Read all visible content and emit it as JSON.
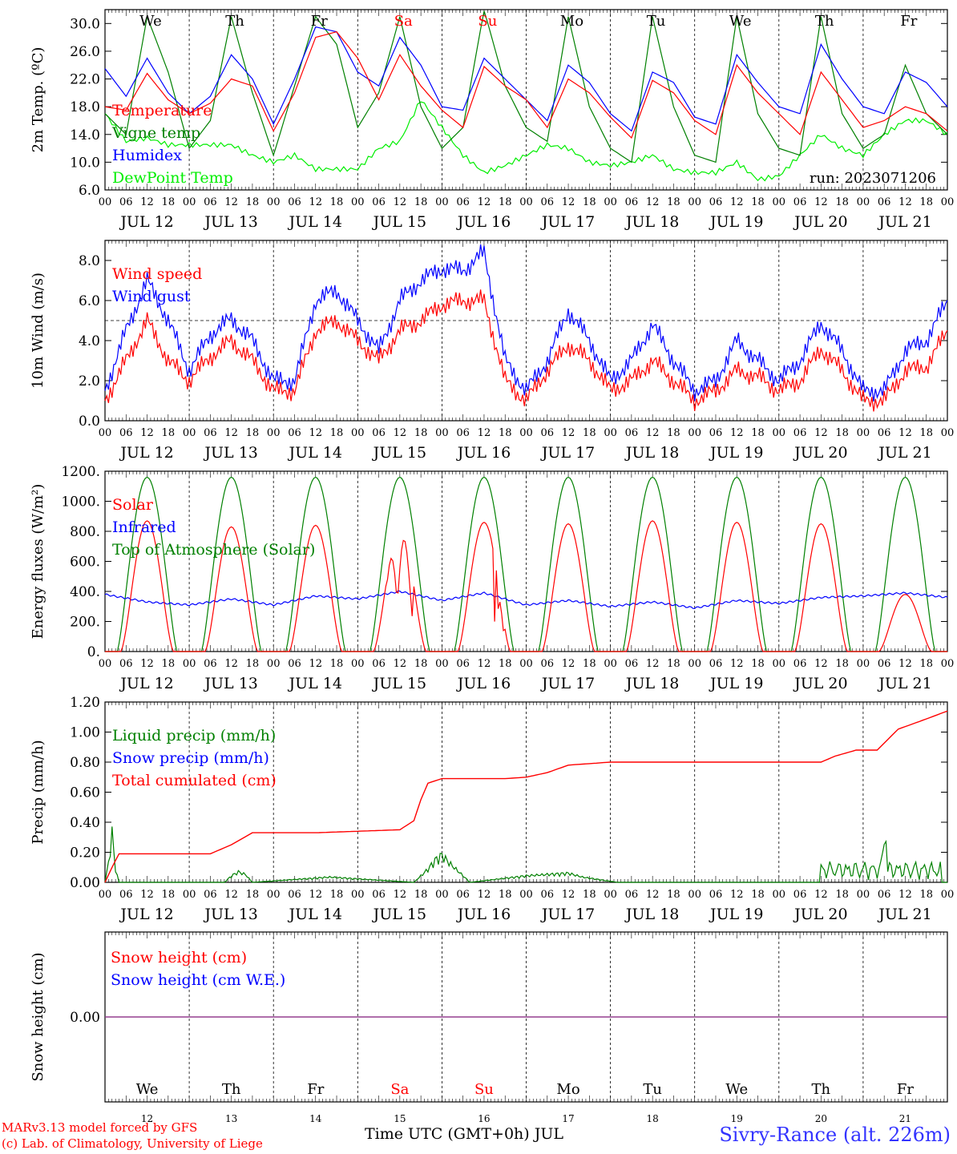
{
  "run_label": "run: 2023071206",
  "station": "Sivry-Rance (alt. 226m)",
  "credits": [
    "MARv3.13 model forced by GFS",
    "(c) Lab. of Climatology, University of Liege"
  ],
  "x_title": "Time UTC (GMT+0h) JUL",
  "days": {
    "weekday_labels": [
      "We",
      "Th",
      "Fr",
      "Sa",
      "Su",
      "Mo",
      "Tu",
      "We",
      "Th",
      "Fr"
    ],
    "weekday_colors": [
      "#000000",
      "#000000",
      "#000000",
      "#ff0000",
      "#ff0000",
      "#000000",
      "#000000",
      "#000000",
      "#000000",
      "#000000"
    ],
    "date_labels": [
      "JUL 12",
      "JUL 13",
      "JUL 14",
      "JUL 15",
      "JUL 16",
      "JUL 17",
      "JUL 18",
      "JUL 19",
      "JUL 20",
      "JUL 21"
    ],
    "day_numbers": [
      "12",
      "13",
      "14",
      "15",
      "16",
      "17",
      "18",
      "19",
      "20",
      "21"
    ],
    "hour_ticks": [
      "00",
      "06",
      "12",
      "18"
    ],
    "final_tick": "00"
  },
  "chart_data": [
    {
      "type": "line",
      "id": "temp",
      "ylabel": "2m Temp. (ºC)",
      "ylim": [
        6,
        32
      ],
      "yticks": [
        "6.0",
        "10.0",
        "14.0",
        "18.0",
        "22.0",
        "26.0",
        "30.0"
      ],
      "ytick_values": [
        6,
        10,
        14,
        18,
        22,
        26,
        30
      ],
      "x_unit": "hours since JUL 12 00 UTC",
      "series": [
        {
          "name": "Temperature",
          "color": "#ff0000",
          "x": [
            0,
            6,
            12,
            18,
            24,
            30,
            36,
            42,
            48,
            54,
            60,
            66,
            72,
            78,
            84,
            90,
            96,
            102,
            108,
            114,
            120,
            126,
            132,
            138,
            144,
            150,
            156,
            162,
            168,
            174,
            180,
            186,
            192,
            198,
            204,
            210,
            216,
            222,
            228,
            234,
            240
          ],
          "values": [
            18,
            17.5,
            22.8,
            19,
            17,
            18.5,
            22,
            21,
            14.5,
            20,
            28,
            28.8,
            25,
            19,
            25.5,
            21,
            17.5,
            15,
            23.8,
            21,
            19,
            15,
            22,
            20,
            16.5,
            13.5,
            21.8,
            20,
            16,
            14,
            24,
            20,
            17,
            14,
            23,
            19,
            15,
            16,
            18,
            17,
            14.5
          ]
        },
        {
          "name": "Vigne temp",
          "color": "#008000",
          "x": [
            0,
            6,
            12,
            18,
            24,
            30,
            36,
            42,
            48,
            54,
            60,
            66,
            72,
            78,
            84,
            90,
            96,
            102,
            108,
            114,
            120,
            126,
            132,
            138,
            144,
            150,
            156,
            162,
            168,
            174,
            180,
            186,
            192,
            198,
            204,
            210,
            216,
            222,
            228,
            234,
            240
          ],
          "values": [
            17,
            14,
            31,
            23,
            12,
            16,
            31,
            20,
            11,
            21,
            31,
            27,
            15,
            20,
            31,
            18,
            12,
            15,
            32,
            21,
            15,
            13,
            31,
            18,
            12,
            10,
            31,
            18,
            11,
            10,
            31,
            17,
            12,
            11,
            31,
            17,
            12,
            14,
            24,
            17,
            14
          ]
        },
        {
          "name": "Humidex",
          "color": "#0000ff",
          "x": [
            0,
            6,
            12,
            18,
            24,
            30,
            36,
            42,
            48,
            54,
            60,
            66,
            72,
            78,
            84,
            90,
            96,
            102,
            108,
            114,
            120,
            126,
            132,
            138,
            144,
            150,
            156,
            162,
            168,
            174,
            180,
            186,
            192,
            198,
            204,
            210,
            216,
            222,
            228,
            234,
            240
          ],
          "values": [
            23.5,
            19.5,
            25,
            20,
            17,
            19.5,
            25.5,
            22,
            15.5,
            22,
            29.5,
            28.8,
            23,
            21,
            28,
            24,
            18,
            17.5,
            25,
            22,
            19,
            16,
            24,
            21.5,
            17,
            14.5,
            23,
            21.5,
            16.5,
            15.5,
            25.5,
            21.5,
            18,
            17,
            27,
            22,
            18,
            17,
            23,
            21.5,
            18
          ]
        },
        {
          "name": "DewPoint Temp",
          "color": "#00ee00",
          "x": [
            0,
            6,
            12,
            18,
            24,
            30,
            36,
            42,
            48,
            54,
            60,
            66,
            72,
            78,
            84,
            90,
            96,
            102,
            108,
            114,
            120,
            126,
            132,
            138,
            144,
            150,
            156,
            162,
            168,
            174,
            180,
            186,
            192,
            198,
            204,
            210,
            216,
            222,
            228,
            234,
            240
          ],
          "values": [
            17,
            13,
            13.5,
            12.5,
            12.5,
            12.5,
            12.5,
            11,
            10,
            11,
            9,
            9,
            9,
            12,
            13,
            19,
            15,
            11,
            8.5,
            9.5,
            11,
            12.5,
            12,
            10,
            9.5,
            10,
            11,
            9,
            8.5,
            8.5,
            10,
            7.5,
            8,
            11,
            14,
            12,
            11,
            14,
            16,
            16,
            14
          ]
        }
      ],
      "series_label_positions": [
        "top-left"
      ],
      "grid": false
    },
    {
      "type": "line",
      "id": "wind",
      "ylabel": "10m Wind (m/s)",
      "ylim": [
        0,
        9
      ],
      "yticks": [
        "0.0",
        "2.0",
        "4.0",
        "6.0",
        "8.0"
      ],
      "ytick_values": [
        0,
        2,
        4,
        6,
        8
      ],
      "reference_line": 5,
      "series": [
        {
          "name": "Wind speed",
          "color": "#ff0000",
          "x": [
            0,
            6,
            12,
            18,
            24,
            30,
            36,
            42,
            48,
            54,
            60,
            66,
            72,
            78,
            84,
            90,
            96,
            102,
            108,
            114,
            120,
            126,
            132,
            138,
            144,
            150,
            156,
            162,
            168,
            174,
            180,
            186,
            192,
            198,
            204,
            210,
            216,
            222,
            228,
            234,
            240
          ],
          "values": [
            1,
            3,
            5,
            3,
            2,
            3.2,
            4,
            3,
            1.5,
            1.5,
            4.5,
            5,
            4,
            3,
            4.5,
            5,
            5.8,
            6,
            6,
            2,
            1,
            2.5,
            3.8,
            3,
            1.5,
            2,
            3,
            2,
            1,
            1.5,
            2.5,
            2.2,
            1.5,
            2,
            3.6,
            2.5,
            1,
            1,
            2.5,
            2.7,
            4.5
          ]
        },
        {
          "name": "Wind gust",
          "color": "#0000ff",
          "x": [
            0,
            6,
            12,
            18,
            24,
            30,
            36,
            42,
            48,
            54,
            60,
            66,
            72,
            78,
            84,
            90,
            96,
            102,
            108,
            114,
            120,
            126,
            132,
            138,
            144,
            150,
            156,
            162,
            168,
            174,
            180,
            186,
            192,
            198,
            204,
            210,
            216,
            222,
            228,
            234,
            240
          ],
          "values": [
            1.5,
            4.5,
            7,
            5,
            2.5,
            4.3,
            5.1,
            4,
            2,
            2,
            6,
            6.5,
            5,
            3.5,
            6,
            7,
            7.6,
            7.5,
            8.4,
            3,
            1.5,
            3,
            5.5,
            4,
            2,
            3,
            4.8,
            3,
            1.5,
            2,
            4,
            3,
            2,
            3,
            4.9,
            3.5,
            1.5,
            1.5,
            3.5,
            4,
            6
          ]
        }
      ],
      "grid": false
    },
    {
      "type": "line",
      "id": "energy",
      "ylabel": "Energy fluxes (W/m²)",
      "ylim": [
        0,
        1200
      ],
      "yticks": [
        "0.",
        "200.",
        "400.",
        "600.",
        "800.",
        "1000.",
        "1200."
      ],
      "ytick_values": [
        0,
        200,
        400,
        600,
        800,
        1000,
        1200
      ],
      "daily_solar_peak": [
        870,
        830,
        840,
        790,
        860,
        850,
        870,
        860,
        850,
        380
      ],
      "toa_peak": 1160,
      "series": [
        {
          "name": "Solar",
          "color": "#ff0000"
        },
        {
          "name": "Infrared",
          "color": "#0000ff",
          "x": [
            0,
            12,
            24,
            36,
            48,
            60,
            72,
            84,
            96,
            108,
            120,
            132,
            144,
            156,
            168,
            180,
            192,
            204,
            216,
            228,
            240
          ],
          "values": [
            380,
            330,
            310,
            350,
            310,
            370,
            350,
            400,
            340,
            390,
            310,
            340,
            300,
            330,
            290,
            340,
            320,
            360,
            370,
            390,
            360
          ]
        },
        {
          "name": "Top of Atmosphere (Solar)",
          "color": "#008000"
        }
      ],
      "grid": false
    },
    {
      "type": "line",
      "id": "precip",
      "ylabel": "Precip (mm/h)",
      "ylim": [
        0,
        1.2
      ],
      "yticks": [
        "0.00",
        "0.20",
        "0.40",
        "0.60",
        "0.80",
        "1.00",
        "1.20"
      ],
      "ytick_values": [
        0,
        0.2,
        0.4,
        0.6,
        0.8,
        1.0,
        1.2
      ],
      "series": [
        {
          "name": "Liquid precip (mm/h)",
          "color": "#008000",
          "x": [
            0,
            1,
            2,
            3,
            4,
            6,
            34,
            36,
            38,
            40,
            42,
            64,
            88,
            90,
            92,
            94,
            96,
            98,
            100,
            102,
            104,
            120,
            132,
            136,
            146,
            148,
            150,
            152,
            154,
            156,
            158,
            160,
            162,
            164
          ],
          "values": [
            0,
            0.15,
            0.38,
            0.1,
            0,
            0,
            0,
            0.05,
            0.08,
            0.06,
            0,
            0.04,
            0,
            0.05,
            0.1,
            0.17,
            0.21,
            0.15,
            0.1,
            0.05,
            0,
            0.05,
            0.07,
            0.04,
            0,
            0,
            0,
            0,
            0,
            0,
            0,
            0,
            0,
            0
          ]
        },
        {
          "name": "Snow precip (mm/h)",
          "color": "#0000ff"
        },
        {
          "name": "Total cumulated (cm)",
          "color": "#ff0000",
          "x": [
            0,
            2,
            4,
            6,
            30,
            36,
            42,
            60,
            72,
            84,
            86,
            88,
            90,
            92,
            96,
            108,
            114,
            120,
            126,
            132,
            144,
            168,
            192,
            204,
            208,
            214,
            216,
            220,
            226,
            232,
            240
          ],
          "values": [
            0,
            0.1,
            0.19,
            0.19,
            0.19,
            0.25,
            0.33,
            0.33,
            0.34,
            0.35,
            0.38,
            0.41,
            0.55,
            0.66,
            0.69,
            0.69,
            0.69,
            0.7,
            0.73,
            0.78,
            0.8,
            0.8,
            0.8,
            0.8,
            0.84,
            0.88,
            0.88,
            0.88,
            1.02,
            1.07,
            1.14
          ]
        }
      ],
      "grid": false
    },
    {
      "type": "line",
      "id": "snow",
      "ylabel": "Snow height (cm)",
      "yticks": [
        "0.00"
      ],
      "ytick_values": [
        0
      ],
      "series": [
        {
          "name": "Snow height (cm)",
          "color": "#ff0000",
          "x": [
            0,
            240
          ],
          "values": [
            0,
            0
          ]
        },
        {
          "name": "Snow height (cm W.E.)",
          "color": "#0000ff",
          "x": [
            0,
            240
          ],
          "values": [
            0,
            0
          ]
        }
      ],
      "grid": false
    }
  ]
}
